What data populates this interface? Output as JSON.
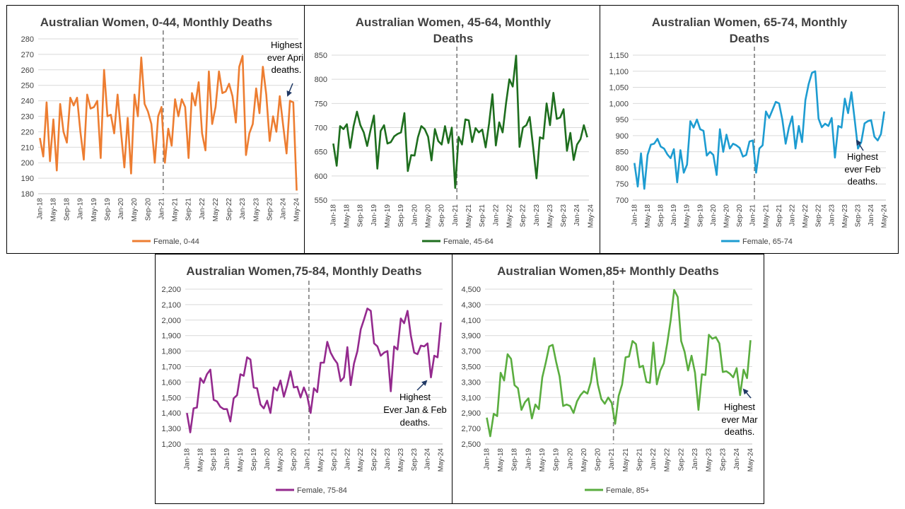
{
  "chart_data": [
    {
      "type": "line",
      "title_lines": [
        "Australian Women, 0-44, Monthly Deaths"
      ],
      "color": "#ED7D31",
      "yticks": [
        "180",
        "190",
        "200",
        "210",
        "220",
        "230",
        "240",
        "250",
        "260",
        "270",
        "280"
      ],
      "ylim": [
        180,
        280
      ],
      "x_ticks": [
        "Jan-18",
        "May-18",
        "Sep-18",
        "Jan-19",
        "May-19",
        "Sep-19",
        "Jan-20",
        "May-20",
        "Sep-20",
        "Jan-21",
        "May-21",
        "Sep-21",
        "Jan-22",
        "May-22",
        "Sep-22",
        "Jan-23",
        "May-23",
        "Sep-23",
        "Jan-24",
        "May-24"
      ],
      "divider_x_index": 36.5,
      "series": [
        {
          "name": "Female, 0-44",
          "values": [
            216,
            204,
            239,
            201,
            228,
            195,
            238,
            220,
            213,
            242,
            237,
            242,
            220,
            202,
            244,
            235,
            236,
            240,
            203,
            260,
            230,
            231,
            219,
            244,
            220,
            197,
            229,
            193,
            244,
            230,
            268,
            238,
            233,
            225,
            200,
            230,
            236,
            200,
            222,
            211,
            241,
            230,
            241,
            236,
            203,
            245,
            237,
            252,
            219,
            208,
            259,
            225,
            236,
            259,
            245,
            246,
            251,
            243,
            226,
            262,
            269,
            205,
            219,
            225,
            248,
            232,
            262,
            244,
            214,
            230,
            220,
            243,
            224,
            206,
            240,
            239,
            182
          ]
        }
      ],
      "annotation_lines": [
        "Highest",
        "ever April",
        "deaths."
      ]
    },
    {
      "type": "line",
      "title_lines": [
        "Australian Women, 45-64, Monthly",
        "Deaths"
      ],
      "color": "#1E6E1E",
      "yticks": [
        "550",
        "600",
        "650",
        "700",
        "750",
        "800",
        "850"
      ],
      "ylim": [
        550,
        850
      ],
      "x_ticks": [
        "Jan-18",
        "May-18",
        "Sep-18",
        "Jan-19",
        "May-19",
        "Sep-19",
        "Jan-20",
        "May-20",
        "Sep-20",
        "Jan-21",
        "May-21",
        "Sep-21",
        "Jan-22",
        "May-22",
        "Sep-22",
        "Jan-23",
        "May-23",
        "Sep-23",
        "Jan-24",
        "May-24"
      ],
      "divider_x_index": 36.5,
      "series": [
        {
          "name": "Female, 45-64",
          "values": [
            667,
            621,
            703,
            697,
            707,
            658,
            703,
            733,
            705,
            690,
            662,
            695,
            725,
            615,
            693,
            705,
            667,
            670,
            682,
            687,
            690,
            730,
            610,
            643,
            642,
            680,
            703,
            697,
            681,
            632,
            697,
            672,
            665,
            703,
            668,
            700,
            575,
            681,
            665,
            717,
            715,
            670,
            699,
            690,
            696,
            659,
            708,
            769,
            663,
            711,
            690,
            750,
            800,
            785,
            849,
            660,
            700,
            705,
            722,
            660,
            595,
            680,
            677,
            750,
            705,
            772,
            718,
            721,
            738,
            652,
            689,
            633,
            665,
            676,
            705,
            680
          ]
        }
      ],
      "annotation_lines": []
    },
    {
      "type": "line",
      "title_lines": [
        "Australian Women, 65-74, Monthly",
        "Deaths"
      ],
      "color": "#1D9CD1",
      "yticks": [
        "700",
        "750",
        "800",
        "850",
        "900",
        "950",
        "1,000",
        "1,050",
        "1,100",
        "1,150"
      ],
      "ylim": [
        700,
        1150
      ],
      "x_ticks": [
        "Jan-18",
        "May-18",
        "Sep-18",
        "Jan-19",
        "May-19",
        "Sep-19",
        "Jan-20",
        "May-20",
        "Sep-20",
        "Jan-21",
        "May-21",
        "Sep-21",
        "Jan-22",
        "May-22",
        "Sep-22",
        "Jan-23",
        "May-23",
        "Sep-23",
        "Jan-24",
        "May-24"
      ],
      "divider_x_index": 36.5,
      "series": [
        {
          "name": "Female, 65-74",
          "values": [
            815,
            742,
            845,
            735,
            840,
            872,
            875,
            890,
            866,
            860,
            842,
            830,
            858,
            755,
            855,
            785,
            810,
            945,
            925,
            950,
            920,
            915,
            838,
            850,
            840,
            778,
            920,
            850,
            903,
            860,
            875,
            870,
            862,
            835,
            840,
            882,
            885,
            785,
            860,
            870,
            975,
            955,
            980,
            1005,
            1000,
            950,
            875,
            925,
            960,
            860,
            930,
            880,
            1010,
            1060,
            1095,
            1100,
            953,
            926,
            937,
            930,
            955,
            832,
            930,
            925,
            1015,
            970,
            1035,
            950,
            860,
            880,
            938,
            945,
            948,
            897,
            885,
            905,
            975
          ]
        }
      ],
      "annotation_lines": [
        "Highest",
        "ever Feb",
        "deaths."
      ]
    },
    {
      "type": "line",
      "title_lines": [
        "Australian Women,75-84, Monthly Deaths"
      ],
      "color": "#942A8E",
      "yticks": [
        "1,200",
        "1,300",
        "1,400",
        "1,500",
        "1,600",
        "1,700",
        "1,800",
        "1,900",
        "2,000",
        "2,100",
        "2,200"
      ],
      "ylim": [
        1200,
        2200
      ],
      "x_ticks": [
        "Jan-18",
        "May-18",
        "Sep-18",
        "Jan-19",
        "May-19",
        "Sep-19",
        "Jan-20",
        "May-20",
        "Sep-20",
        "Jan-21",
        "May-21",
        "Sep-21",
        "Jan-22",
        "May-22",
        "Sep-22",
        "Jan-23",
        "May-23",
        "Sep-23",
        "Jan-24",
        "May-24"
      ],
      "divider_x_index": 36.5,
      "series": [
        {
          "name": "Female, 75-84",
          "values": [
            1400,
            1275,
            1430,
            1435,
            1625,
            1595,
            1650,
            1680,
            1485,
            1475,
            1440,
            1425,
            1425,
            1345,
            1495,
            1515,
            1650,
            1640,
            1760,
            1745,
            1565,
            1560,
            1455,
            1430,
            1480,
            1400,
            1565,
            1545,
            1610,
            1505,
            1580,
            1670,
            1565,
            1570,
            1500,
            1565,
            1510,
            1400,
            1560,
            1535,
            1725,
            1725,
            1860,
            1790,
            1750,
            1720,
            1605,
            1630,
            1825,
            1580,
            1720,
            1800,
            1940,
            2005,
            2075,
            2060,
            1850,
            1830,
            1770,
            1790,
            1800,
            1540,
            1830,
            1810,
            2010,
            1980,
            2060,
            1900,
            1790,
            1780,
            1835,
            1830,
            1850,
            1630,
            1770,
            1760,
            1985
          ]
        }
      ],
      "annotation_lines": [
        "Highest",
        "Ever Jan & Feb",
        "deaths."
      ]
    },
    {
      "type": "line",
      "title_lines": [
        "Australian Women,85+ Monthly Deaths"
      ],
      "color": "#5AAD3F",
      "yticks": [
        "2,500",
        "2,700",
        "2,900",
        "3,100",
        "3,300",
        "3,500",
        "3,700",
        "3,900",
        "4,100",
        "4,300",
        "4,500"
      ],
      "ylim": [
        2500,
        4500
      ],
      "x_ticks": [
        "Jan-18",
        "May-18",
        "Sep-18",
        "Jan-19",
        "May-19",
        "Sep-19",
        "Jan-20",
        "May-20",
        "Sep-20",
        "Jan-21",
        "May-21",
        "Sep-21",
        "Jan-22",
        "May-22",
        "Sep-22",
        "Jan-23",
        "May-23",
        "Sep-23",
        "Jan-24",
        "May-24"
      ],
      "divider_x_index": 36.5,
      "series": [
        {
          "name": "Female, 85+",
          "values": [
            2840,
            2600,
            2890,
            2860,
            3420,
            3320,
            3660,
            3600,
            3260,
            3220,
            2940,
            3040,
            3090,
            2830,
            3010,
            2950,
            3360,
            3550,
            3760,
            3780,
            3560,
            3370,
            2990,
            3010,
            2990,
            2900,
            3050,
            3130,
            3180,
            3150,
            3300,
            3610,
            3270,
            3080,
            3020,
            3100,
            3030,
            2760,
            3120,
            3270,
            3620,
            3630,
            3830,
            3790,
            3490,
            3510,
            3300,
            3290,
            3810,
            3270,
            3450,
            3540,
            3800,
            4100,
            4490,
            4400,
            3830,
            3690,
            3450,
            3640,
            3420,
            2940,
            3400,
            3390,
            3910,
            3860,
            3880,
            3800,
            3430,
            3440,
            3410,
            3360,
            3480,
            3130,
            3460,
            3350,
            3840
          ]
        }
      ],
      "annotation_lines": [
        "Highest",
        "ever Mar",
        "deaths."
      ]
    }
  ]
}
